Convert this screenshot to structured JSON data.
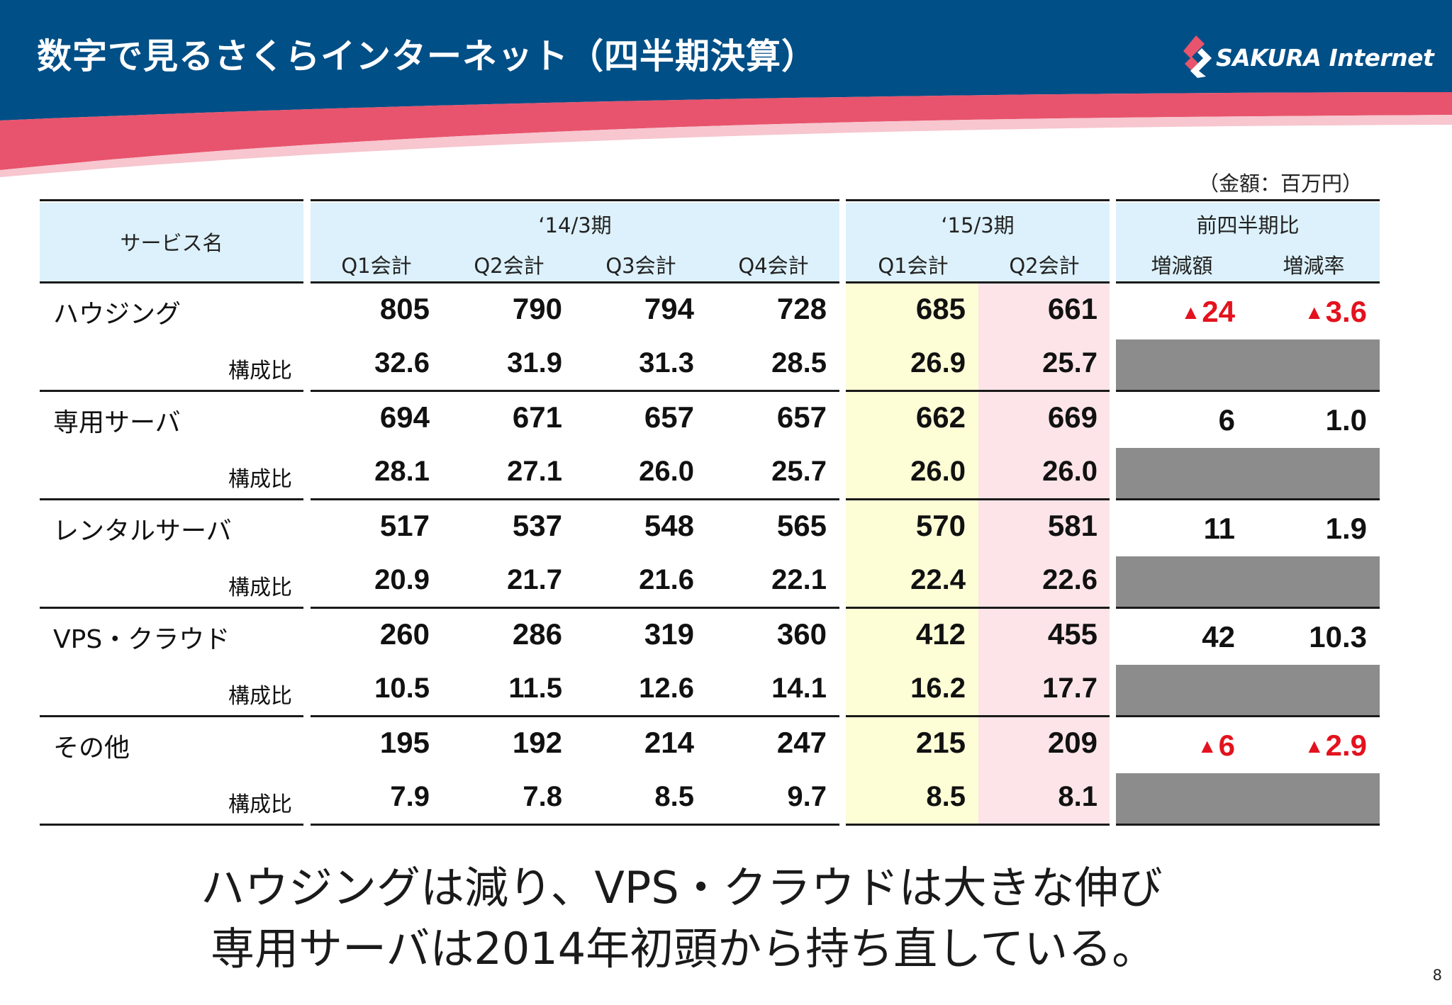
{
  "header": {
    "title": "数字で見るさくらインターネット（四半期決算）",
    "logo_text": "SAKURA Internet",
    "colors": {
      "navy": "#004f87",
      "pink": "#e8546d",
      "light_pink": "#f4a6b4"
    }
  },
  "unit_note": "（金額：百万円）",
  "table": {
    "service_header": "サービス名",
    "groups": [
      {
        "label": "‘14/3期",
        "columns": [
          "Q1会計",
          "Q2会計",
          "Q3会計",
          "Q4会計"
        ]
      },
      {
        "label": "‘15/3期",
        "columns": [
          "Q1会計",
          "Q2会計"
        ]
      },
      {
        "label": "前四半期比",
        "columns": [
          "増減額",
          "増減率"
        ]
      }
    ],
    "ratio_label": "構成比",
    "rows": [
      {
        "name": "ハウジング",
        "values": [
          "805",
          "790",
          "794",
          "728",
          "685",
          "661"
        ],
        "change_amount": "24",
        "change_rate": "3.6",
        "change_amount_negative": true,
        "change_rate_negative": true,
        "ratios": [
          "32.6",
          "31.9",
          "31.3",
          "28.5",
          "26.9",
          "25.7"
        ]
      },
      {
        "name": "専用サーバ",
        "values": [
          "694",
          "671",
          "657",
          "657",
          "662",
          "669"
        ],
        "change_amount": "6",
        "change_rate": "1.0",
        "change_amount_negative": false,
        "change_rate_negative": false,
        "ratios": [
          "28.1",
          "27.1",
          "26.0",
          "25.7",
          "26.0",
          "26.0"
        ]
      },
      {
        "name": "レンタルサーバ",
        "values": [
          "517",
          "537",
          "548",
          "565",
          "570",
          "581"
        ],
        "change_amount": "11",
        "change_rate": "1.9",
        "change_amount_negative": false,
        "change_rate_negative": false,
        "ratios": [
          "20.9",
          "21.7",
          "21.6",
          "22.1",
          "22.4",
          "22.6"
        ]
      },
      {
        "name": "VPS・クラウド",
        "values": [
          "260",
          "286",
          "319",
          "360",
          "412",
          "455"
        ],
        "change_amount": "42",
        "change_rate": "10.3",
        "change_amount_negative": false,
        "change_rate_negative": false,
        "ratios": [
          "10.5",
          "11.5",
          "12.6",
          "14.1",
          "16.2",
          "17.7"
        ]
      },
      {
        "name": "その他",
        "values": [
          "195",
          "192",
          "214",
          "247",
          "215",
          "209"
        ],
        "change_amount": "6",
        "change_rate": "2.9",
        "change_amount_negative": true,
        "change_rate_negative": true,
        "ratios": [
          "7.9",
          "7.8",
          "8.5",
          "9.7",
          "8.5",
          "8.1"
        ]
      }
    ],
    "negative_marker": "▲",
    "colors": {
      "header_bg": "#dcf1fb",
      "q1_highlight": "#fdfdd6",
      "q2_highlight": "#fde4e8",
      "negative": "#e3121e",
      "blank_cell": "#8c8c8c"
    }
  },
  "summary": [
    "ハウジングは減り、VPS・クラウドは大きな伸び",
    "専用サーバは2014年初頭から持ち直している。"
  ],
  "page_number": "8"
}
